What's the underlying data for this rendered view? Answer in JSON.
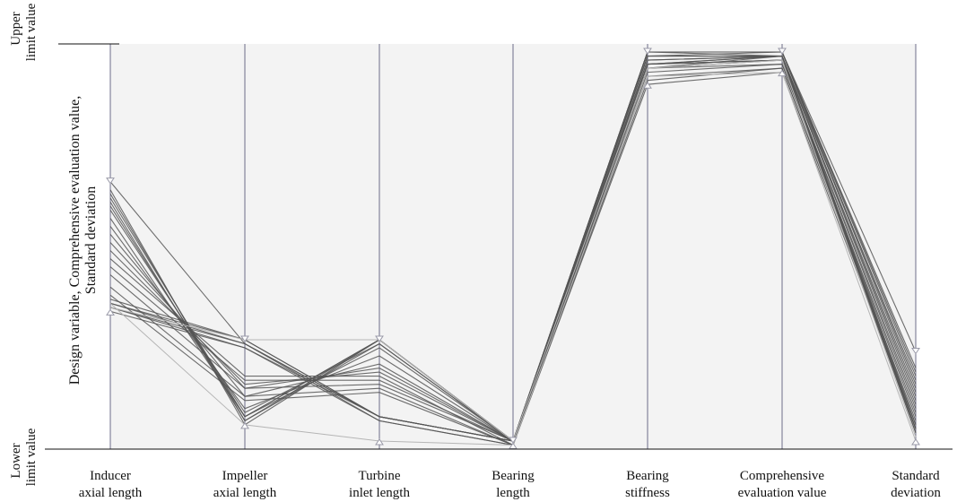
{
  "chart_data": {
    "type": "parallel-coordinates",
    "ylabel": [
      "Design variable, Comprehensive evaluation value,",
      "Standard deviation"
    ],
    "y_ticks": {
      "upper": [
        "Upper",
        "limit value"
      ],
      "lower": [
        "Lower",
        "limit value"
      ]
    },
    "axes": [
      {
        "label": [
          "Inducer",
          "axial length"
        ]
      },
      {
        "label": [
          "Impeller",
          "axial length"
        ]
      },
      {
        "label": [
          "Turbine",
          "inlet length"
        ]
      },
      {
        "label": [
          "Bearing",
          "length"
        ]
      },
      {
        "label": [
          "Bearing",
          "stiffness"
        ]
      },
      {
        "label": [
          "Comprehensive",
          "evaluation value"
        ]
      },
      {
        "label": [
          "Standard",
          "deviation"
        ]
      }
    ],
    "ylim": [
      0,
      1
    ],
    "grid": false,
    "background": "#f3f3f3",
    "colors": {
      "line": "#555555",
      "light_line": "#b5b5b5",
      "axis": "#6e6e8a"
    },
    "series": [
      {
        "values": [
          0.64,
          0.06,
          0.27,
          0.02,
          0.98,
          0.98,
          0.2
        ]
      },
      {
        "values": [
          0.63,
          0.07,
          0.27,
          0.02,
          0.98,
          0.98,
          0.19
        ]
      },
      {
        "values": [
          0.62,
          0.08,
          0.27,
          0.02,
          0.98,
          0.98,
          0.18
        ]
      },
      {
        "values": [
          0.61,
          0.07,
          0.26,
          0.02,
          0.98,
          0.97,
          0.17
        ]
      },
      {
        "values": [
          0.6,
          0.08,
          0.27,
          0.02,
          0.98,
          0.98,
          0.16
        ]
      },
      {
        "values": [
          0.59,
          0.09,
          0.26,
          0.02,
          0.97,
          0.98,
          0.15
        ]
      },
      {
        "values": [
          0.57,
          0.08,
          0.25,
          0.02,
          0.97,
          0.97,
          0.14
        ]
      },
      {
        "values": [
          0.55,
          0.1,
          0.23,
          0.02,
          0.97,
          0.97,
          0.13
        ]
      },
      {
        "values": [
          0.53,
          0.13,
          0.21,
          0.02,
          0.96,
          0.97,
          0.12
        ]
      },
      {
        "values": [
          0.51,
          0.15,
          0.2,
          0.02,
          0.95,
          0.96,
          0.11
        ]
      },
      {
        "values": [
          0.49,
          0.16,
          0.19,
          0.02,
          0.95,
          0.96,
          0.1
        ]
      },
      {
        "values": [
          0.47,
          0.18,
          0.18,
          0.01,
          0.94,
          0.95,
          0.09
        ]
      },
      {
        "values": [
          0.45,
          0.17,
          0.17,
          0.02,
          0.93,
          0.95,
          0.08
        ]
      },
      {
        "values": [
          0.43,
          0.15,
          0.16,
          0.02,
          0.92,
          0.94,
          0.07
        ]
      },
      {
        "values": [
          0.4,
          0.13,
          0.15,
          0.01,
          0.91,
          0.94,
          0.06
        ]
      },
      {
        "values": [
          0.38,
          0.12,
          0.14,
          0.01,
          0.9,
          0.93,
          0.05
        ]
      },
      {
        "values": [
          0.37,
          0.27,
          0.08,
          0.02,
          0.94,
          0.97,
          0.06
        ]
      },
      {
        "values": [
          0.36,
          0.27,
          0.08,
          0.02,
          0.95,
          0.97,
          0.05
        ]
      },
      {
        "values": [
          0.36,
          0.26,
          0.08,
          0.02,
          0.95,
          0.97,
          0.05
        ]
      },
      {
        "values": [
          0.35,
          0.26,
          0.07,
          0.01,
          0.94,
          0.96,
          0.04
        ]
      },
      {
        "values": [
          0.35,
          0.25,
          0.08,
          0.02,
          0.95,
          0.96,
          0.05
        ]
      },
      {
        "values": [
          0.34,
          0.25,
          0.07,
          0.01,
          0.96,
          0.97,
          0.04
        ]
      },
      {
        "values": [
          0.66,
          0.26,
          0.08,
          0.02,
          0.98,
          0.98,
          0.24
        ]
      },
      {
        "values": [
          0.36,
          0.06,
          0.02,
          0.01,
          0.92,
          0.93,
          0.02
        ]
      },
      {
        "values": [
          0.35,
          0.27,
          0.27,
          0.02,
          0.94,
          0.96,
          0.03
        ]
      }
    ]
  }
}
